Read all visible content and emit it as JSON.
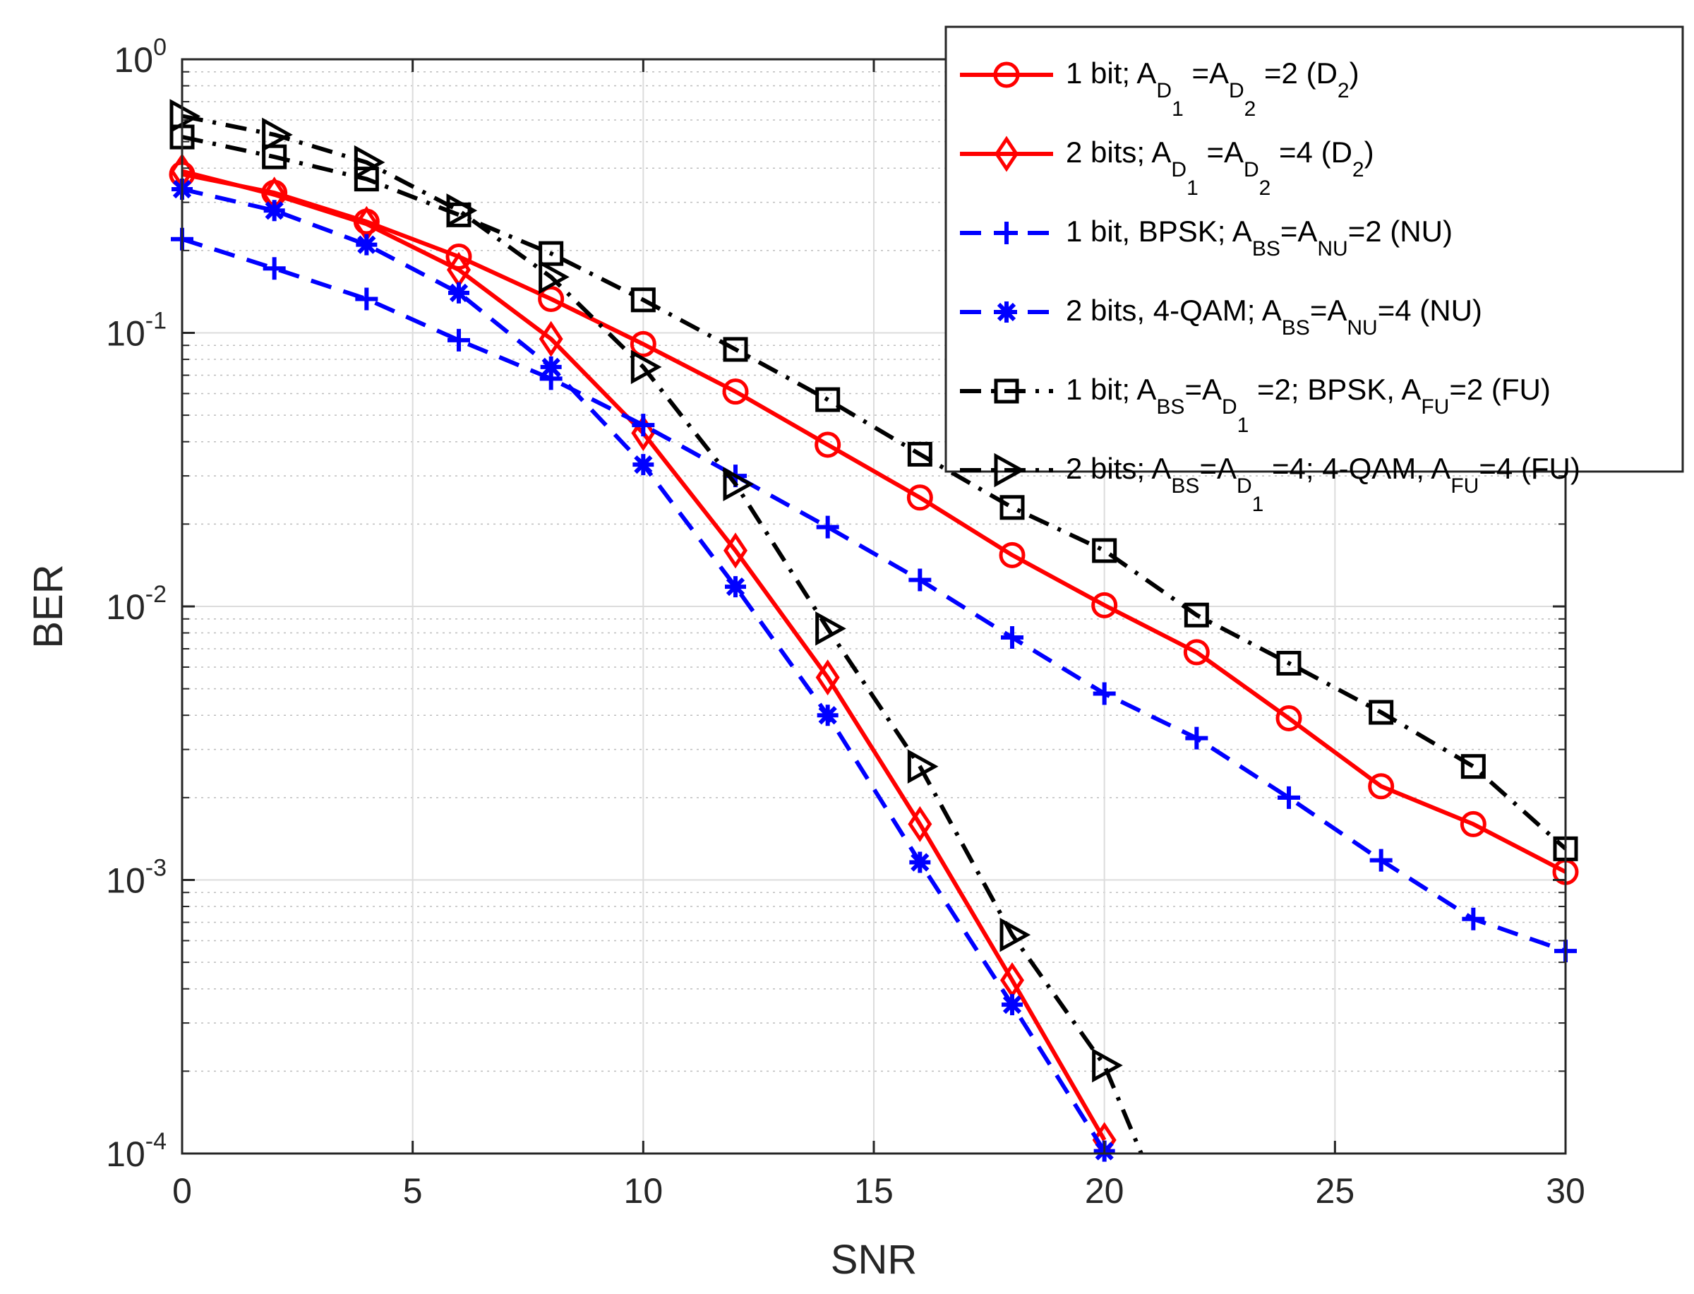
{
  "chart_data": {
    "type": "line",
    "xlabel": "SNR",
    "ylabel": "BER",
    "xlim": [
      0,
      30
    ],
    "ylim": [
      0.0001,
      1
    ],
    "yscale": "log",
    "grid": true,
    "legend_position": "top-right",
    "x_ticks": [
      0,
      5,
      10,
      15,
      20,
      25,
      30
    ],
    "y_ticks": [
      {
        "value": 1,
        "base": "10",
        "exp": "0"
      },
      {
        "value": 0.1,
        "base": "10",
        "exp": "-1"
      },
      {
        "value": 0.01,
        "base": "10",
        "exp": "-2"
      },
      {
        "value": 0.001,
        "base": "10",
        "exp": "-3"
      },
      {
        "value": 0.0001,
        "base": "10",
        "exp": "-4"
      }
    ],
    "series": [
      {
        "name": "1 bit; A_D1=A_D2=2 (D2)",
        "legend_parts": [
          [
            "1 bit; A",
            ""
          ],
          [
            "D",
            "sub"
          ],
          [
            "1",
            "subsub"
          ],
          [
            " =A",
            ""
          ],
          [
            "D",
            "sub"
          ],
          [
            "2",
            "subsub"
          ],
          [
            " =2 (D",
            ""
          ],
          [
            "2",
            "sub"
          ],
          [
            ")",
            ""
          ]
        ],
        "color": "#ff0000",
        "dash": "solid",
        "marker": "circle",
        "x": [
          0,
          2,
          4,
          6,
          8,
          10,
          12,
          14,
          16,
          18,
          20,
          22,
          24,
          26,
          28,
          30
        ],
        "y": [
          0.38,
          0.325,
          0.255,
          0.19,
          0.133,
          0.091,
          0.061,
          0.039,
          0.025,
          0.0154,
          0.0101,
          0.0068,
          0.0039,
          0.0022,
          0.0016,
          0.00107
        ]
      },
      {
        "name": "2 bits; A_D1=A_D2=4 (D2)",
        "legend_parts": [
          [
            "2 bits; A",
            ""
          ],
          [
            "D",
            "sub"
          ],
          [
            "1",
            "subsub"
          ],
          [
            " =A",
            ""
          ],
          [
            "D",
            "sub"
          ],
          [
            "2",
            "subsub"
          ],
          [
            " =4 (D",
            ""
          ],
          [
            "2",
            "sub"
          ],
          [
            ")",
            ""
          ]
        ],
        "color": "#ff0000",
        "dash": "solid",
        "marker": "diamond",
        "x": [
          0,
          2,
          4,
          6,
          8,
          10,
          12,
          14,
          16,
          18,
          20
        ],
        "y": [
          0.39,
          0.32,
          0.25,
          0.17,
          0.095,
          0.043,
          0.016,
          0.0055,
          0.0016,
          0.00043,
          0.000112
        ]
      },
      {
        "name": "1 bit, BPSK; A_BS=A_NU=2 (NU)",
        "legend_parts": [
          [
            "1 bit, BPSK; A",
            ""
          ],
          [
            "BS",
            "sub"
          ],
          [
            "=A",
            ""
          ],
          [
            "NU",
            "sub"
          ],
          [
            "=2 (NU)",
            ""
          ]
        ],
        "color": "#0000ff",
        "dash": "dashed",
        "marker": "plus",
        "x": [
          0,
          2,
          4,
          6,
          8,
          10,
          12,
          14,
          16,
          18,
          20,
          22,
          24,
          26,
          28,
          30
        ],
        "y": [
          0.22,
          0.172,
          0.133,
          0.094,
          0.068,
          0.046,
          0.03,
          0.0195,
          0.0125,
          0.0077,
          0.0048,
          0.0033,
          0.002,
          0.00118,
          0.00072,
          0.00055
        ]
      },
      {
        "name": "2 bits, 4-QAM; A_BS=A_NU=4 (NU)",
        "legend_parts": [
          [
            "2 bits, 4-QAM; A",
            ""
          ],
          [
            "BS",
            "sub"
          ],
          [
            "=A",
            ""
          ],
          [
            "NU",
            "sub"
          ],
          [
            "=4 (NU)",
            ""
          ]
        ],
        "color": "#0000ff",
        "dash": "dashed",
        "marker": "asterisk",
        "x": [
          0,
          2,
          4,
          6,
          8,
          10,
          12,
          14,
          16,
          18,
          20
        ],
        "y": [
          0.335,
          0.28,
          0.21,
          0.14,
          0.075,
          0.033,
          0.0118,
          0.004,
          0.00116,
          0.00035,
          0.000102
        ]
      },
      {
        "name": "1 bit; A_BS=A_D1=2; BPSK, A_FU=2 (FU)",
        "legend_parts": [
          [
            "1 bit; A",
            ""
          ],
          [
            "BS",
            "sub"
          ],
          [
            "=A",
            ""
          ],
          [
            "D",
            "sub"
          ],
          [
            "1",
            "subsub"
          ],
          [
            " =2; BPSK, A",
            ""
          ],
          [
            "FU",
            "sub"
          ],
          [
            "=2 (FU)",
            ""
          ]
        ],
        "color": "#000000",
        "dash": "dashdot",
        "marker": "square",
        "x": [
          0,
          2,
          4,
          6,
          8,
          10,
          12,
          14,
          16,
          18,
          20,
          22,
          24,
          26,
          28,
          30
        ],
        "y": [
          0.52,
          0.44,
          0.365,
          0.27,
          0.195,
          0.132,
          0.087,
          0.057,
          0.036,
          0.023,
          0.016,
          0.0093,
          0.0062,
          0.0041,
          0.0026,
          0.0013
        ]
      },
      {
        "name": "2 bits; A_BS=A_D1=4; 4-QAM, A_FU=4 (FU)",
        "legend_parts": [
          [
            "2 bits; A",
            ""
          ],
          [
            "BS",
            "sub"
          ],
          [
            "=A",
            ""
          ],
          [
            "D",
            "sub"
          ],
          [
            "1",
            "subsub"
          ],
          [
            " =4; 4-QAM, A",
            ""
          ],
          [
            "FU",
            "sub"
          ],
          [
            "=4 (FU)",
            ""
          ]
        ],
        "color": "#000000",
        "dash": "dashdot",
        "marker": "triangle-right",
        "x": [
          0,
          2,
          4,
          6,
          8,
          10,
          12,
          14,
          16,
          18,
          20,
          20.8
        ],
        "y": [
          0.62,
          0.53,
          0.42,
          0.28,
          0.16,
          0.075,
          0.028,
          0.0083,
          0.0026,
          0.00063,
          0.00021,
          0.0001
        ]
      }
    ]
  }
}
